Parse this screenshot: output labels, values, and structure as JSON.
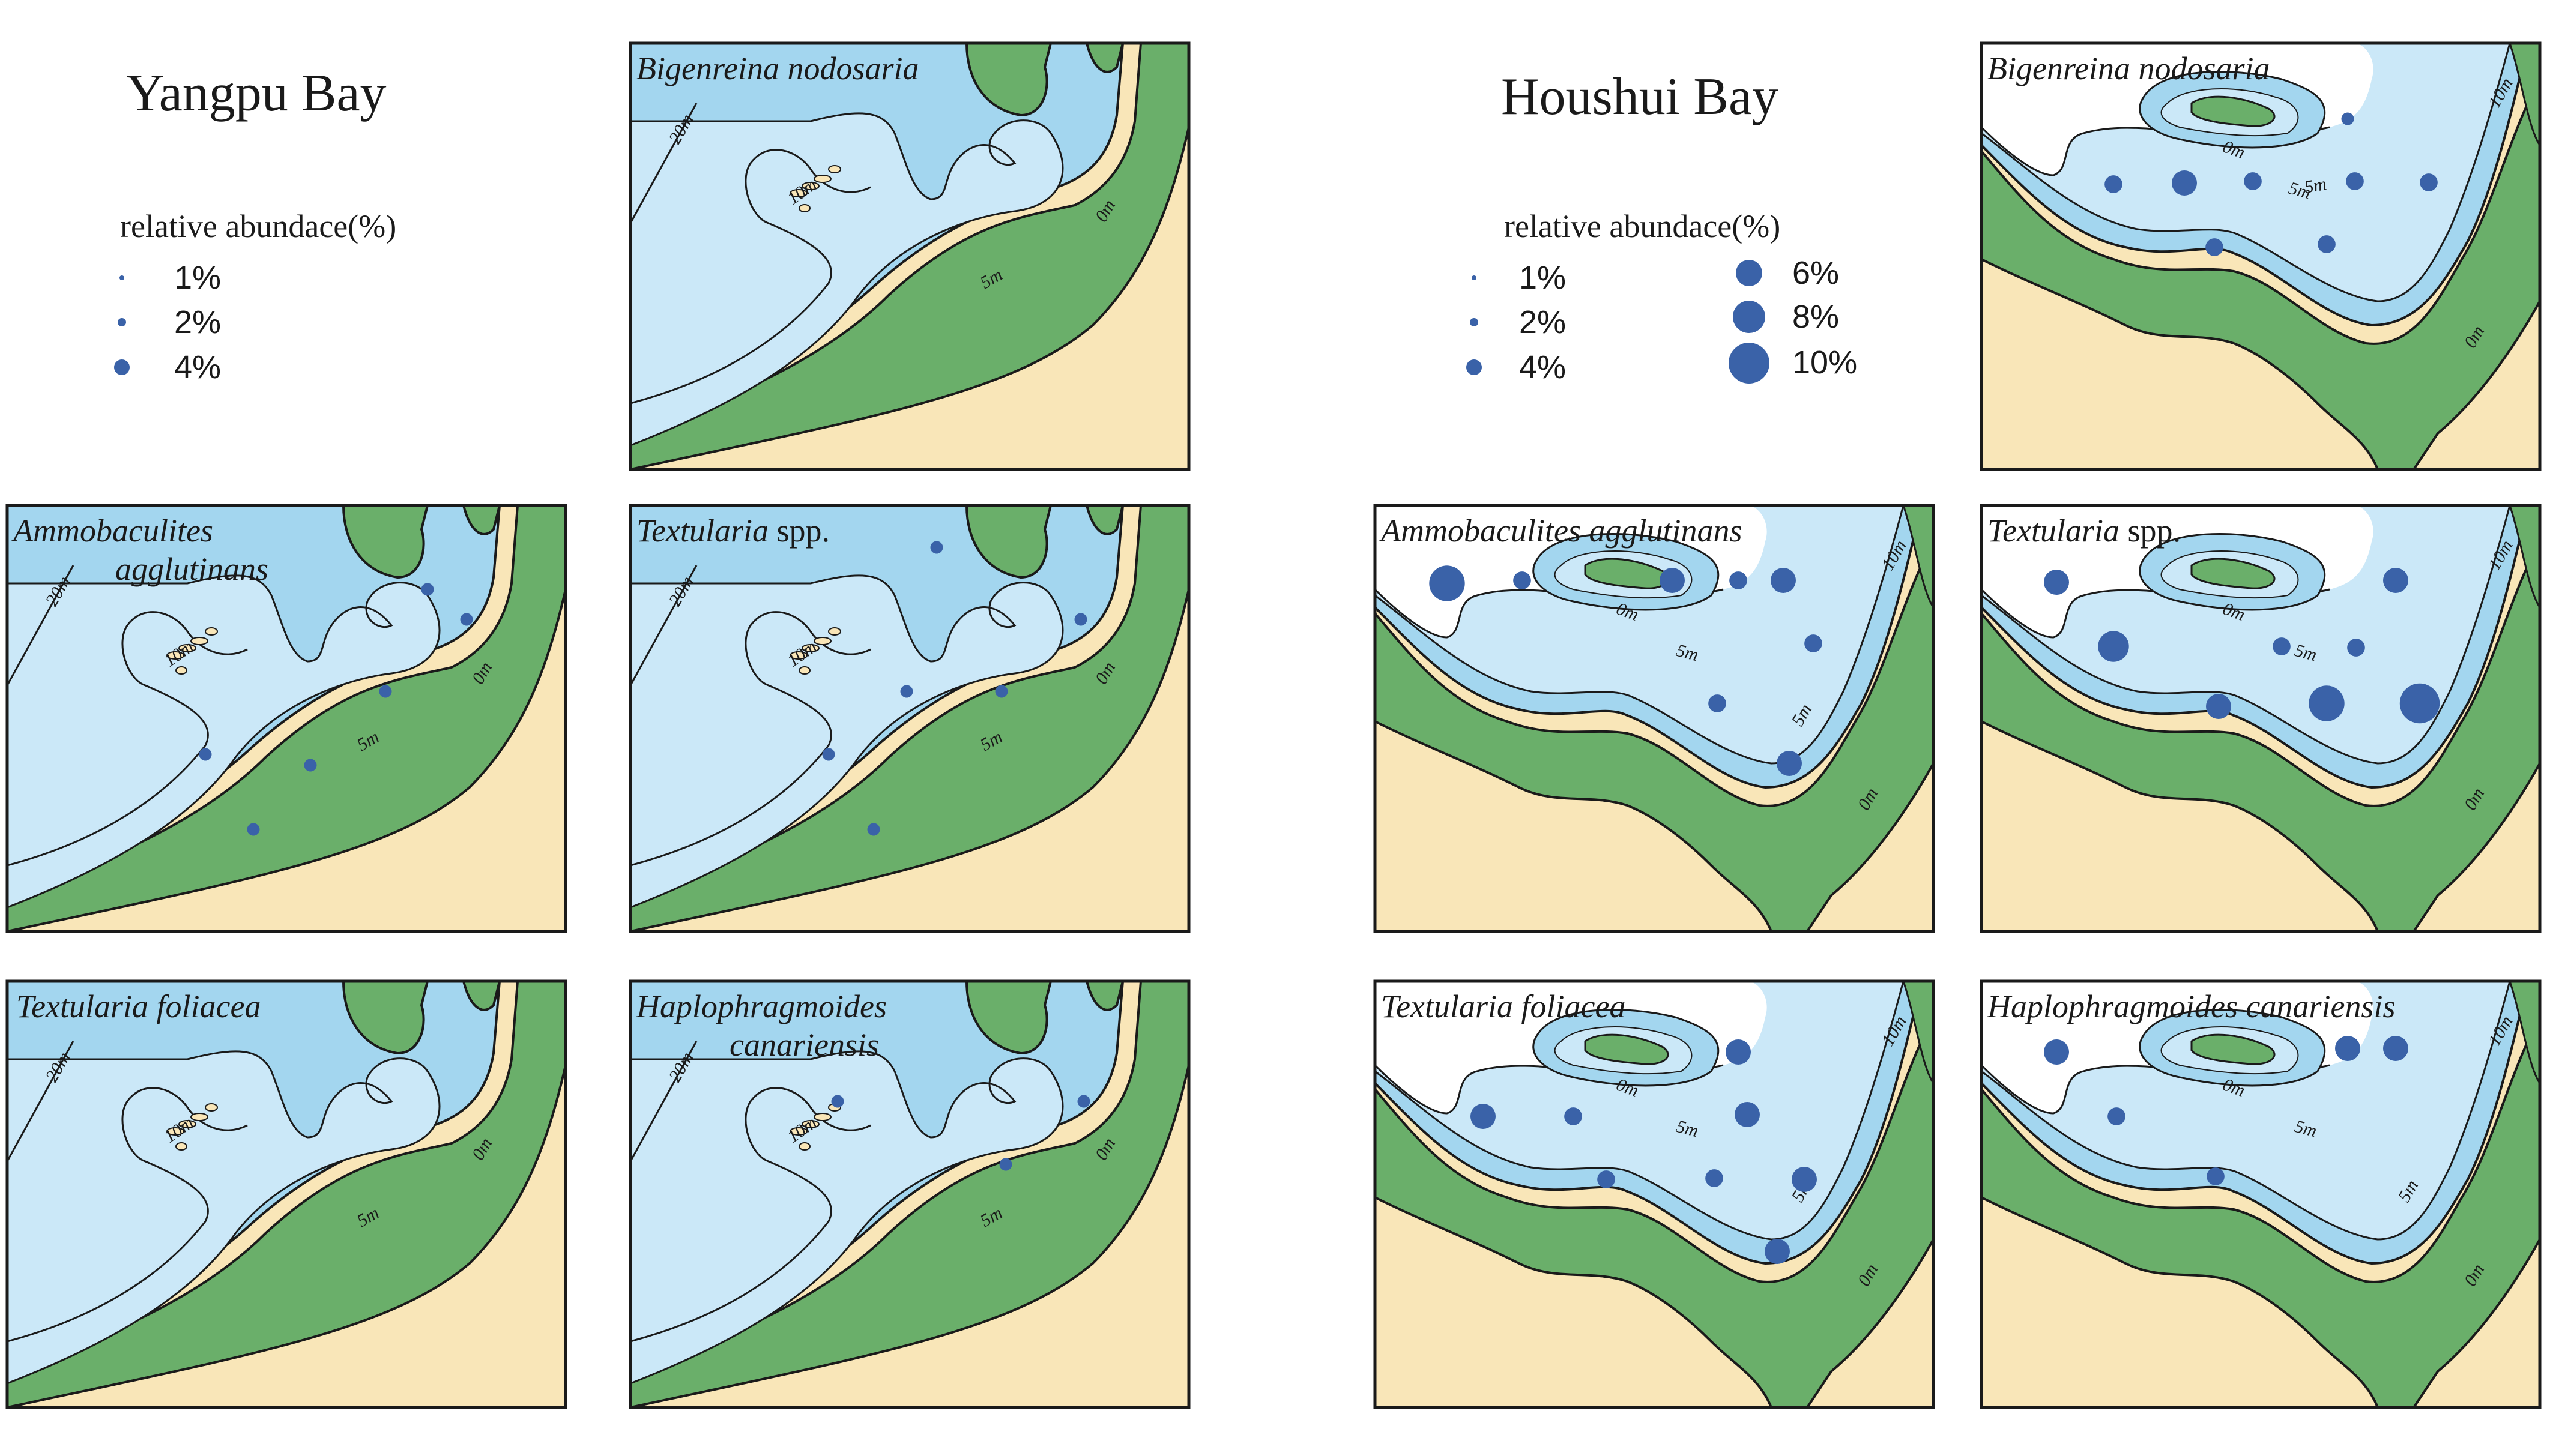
{
  "colors": {
    "land": "#f9e6b8",
    "intertidal": "#6aaf6a",
    "shallow_water": "#a3d6ef",
    "deep_water": "#cbe8f8",
    "sample_dot": "#3a62a8",
    "outline": "#1a1a1a"
  },
  "bays": [
    {
      "title": "Yangpu Bay",
      "legend": {
        "heading": "relative abundace(%)",
        "entries": [
          {
            "label": "1%",
            "percent": 1
          },
          {
            "label": "2%",
            "percent": 2
          },
          {
            "label": "4%",
            "percent": 4
          }
        ]
      },
      "contour_labels": [
        "20m",
        "10m",
        "5m",
        "0m"
      ],
      "panels": [
        {
          "species": "Bigenreina nodosaria",
          "suffix": "",
          "samples": []
        },
        {
          "species": "Ammobaculites",
          "species_line2": "agglutinans",
          "suffix": "",
          "samples": [
            {
              "station": "a",
              "percent": 1
            },
            {
              "station": "b",
              "percent": 1
            },
            {
              "station": "c",
              "percent": 1
            },
            {
              "station": "d",
              "percent": 1
            },
            {
              "station": "e",
              "percent": 1
            },
            {
              "station": "f",
              "percent": 1
            }
          ]
        },
        {
          "species": "Textularia",
          "suffix": "spp.",
          "samples": [
            {
              "station": "a",
              "percent": 1
            },
            {
              "station": "b",
              "percent": 1
            },
            {
              "station": "c",
              "percent": 1
            },
            {
              "station": "d",
              "percent": 1
            },
            {
              "station": "e",
              "percent": 1
            },
            {
              "station": "f",
              "percent": 1
            }
          ]
        },
        {
          "species": "Textularia foliacea",
          "suffix": "",
          "samples": []
        },
        {
          "species": "Haplophragmoides",
          "species_line2": "canariensis",
          "suffix": "",
          "samples": [
            {
              "station": "a",
              "percent": 1
            },
            {
              "station": "b",
              "percent": 1
            },
            {
              "station": "c",
              "percent": 1
            }
          ]
        }
      ]
    },
    {
      "title": "Houshui Bay",
      "legend": {
        "heading": "relative abundace(%)",
        "entries": [
          {
            "label": "1%",
            "percent": 1
          },
          {
            "label": "2%",
            "percent": 2
          },
          {
            "label": "4%",
            "percent": 4
          },
          {
            "label": "6%",
            "percent": 6
          },
          {
            "label": "8%",
            "percent": 8
          },
          {
            "label": "10%",
            "percent": 10
          }
        ]
      },
      "contour_labels": [
        "10m",
        "5m",
        "0m"
      ],
      "panels": [
        {
          "species": "Bigenreina nodosaria",
          "suffix": "",
          "samples": [
            {
              "station": "a",
              "percent": 4
            },
            {
              "station": "b",
              "percent": 1
            },
            {
              "station": "c",
              "percent": 2
            },
            {
              "station": "d",
              "percent": 2
            },
            {
              "station": "e",
              "percent": 2
            },
            {
              "station": "f",
              "percent": 2
            },
            {
              "station": "g",
              "percent": 2
            },
            {
              "station": "h",
              "percent": 2
            }
          ]
        },
        {
          "species": "Ammobaculites agglutinans",
          "suffix": "",
          "samples": [
            {
              "station": "a",
              "percent": 8
            },
            {
              "station": "b",
              "percent": 2
            },
            {
              "station": "c",
              "percent": 2
            },
            {
              "station": "d",
              "percent": 4
            },
            {
              "station": "e",
              "percent": 4
            },
            {
              "station": "f",
              "percent": 2
            },
            {
              "station": "g",
              "percent": 2
            },
            {
              "station": "h",
              "percent": 4
            }
          ]
        },
        {
          "species": "Textularia",
          "suffix": "spp.",
          "samples": [
            {
              "station": "a",
              "percent": 4
            },
            {
              "station": "b",
              "percent": 6
            },
            {
              "station": "c",
              "percent": 2
            },
            {
              "station": "d",
              "percent": 2
            },
            {
              "station": "e",
              "percent": 4
            },
            {
              "station": "f",
              "percent": 8
            },
            {
              "station": "g",
              "percent": 10
            },
            {
              "station": "h",
              "percent": 4
            }
          ]
        },
        {
          "species": "Textularia foliacea",
          "suffix": "",
          "samples": [
            {
              "station": "a",
              "percent": 4
            },
            {
              "station": "b",
              "percent": 2
            },
            {
              "station": "c",
              "percent": 4
            },
            {
              "station": "d",
              "percent": 2
            },
            {
              "station": "e",
              "percent": 2
            },
            {
              "station": "f",
              "percent": 4
            },
            {
              "station": "g",
              "percent": 4
            },
            {
              "station": "h",
              "percent": 4
            }
          ]
        },
        {
          "species": "Haplophragmoides canariensis",
          "suffix": "",
          "samples": [
            {
              "station": "a",
              "percent": 4
            },
            {
              "station": "b",
              "percent": 4
            },
            {
              "station": "c",
              "percent": 4
            },
            {
              "station": "d",
              "percent": 2
            },
            {
              "station": "e",
              "percent": 2
            }
          ]
        }
      ]
    }
  ]
}
